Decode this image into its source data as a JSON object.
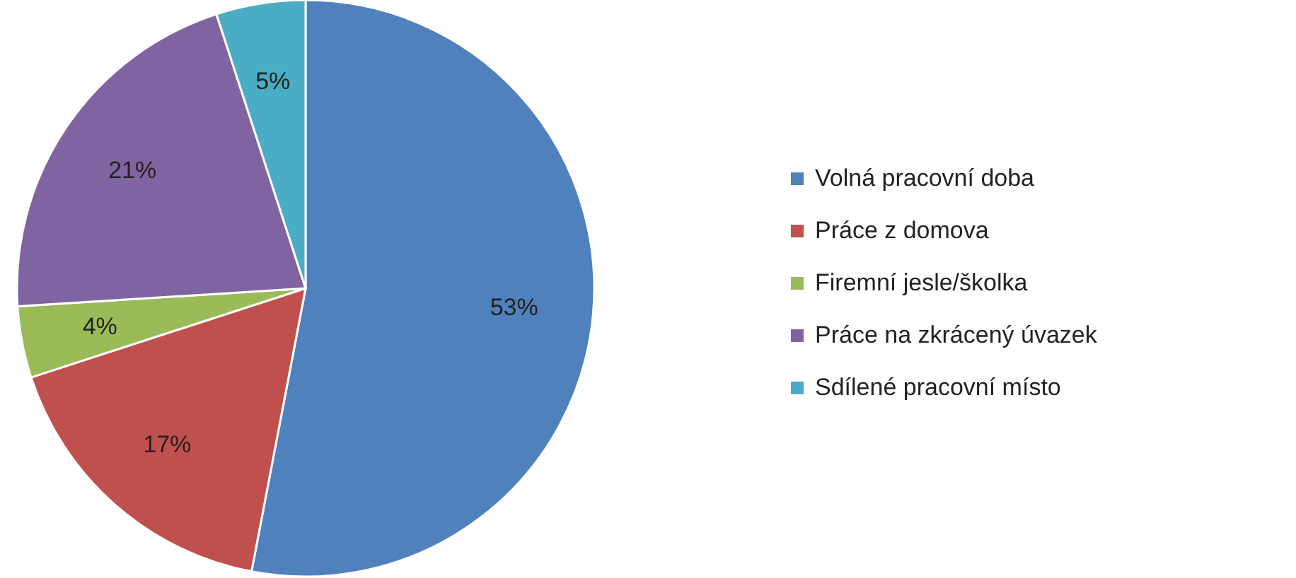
{
  "chart_data": {
    "type": "pie",
    "categories": [
      "Volná pracovní doba",
      "Práce z domova",
      "Firemní jesle/školka",
      "Práce na zkrácený úvazek",
      "Sdílené pracovní místo"
    ],
    "values": [
      53,
      17,
      4,
      21,
      5
    ],
    "colors": [
      "#4f81bd",
      "#c0504d",
      "#9bbb59",
      "#8064a2",
      "#4bacc6"
    ],
    "value_labels": [
      "53%",
      "17%",
      "4%",
      "21%",
      "5%"
    ],
    "legend": "right"
  }
}
